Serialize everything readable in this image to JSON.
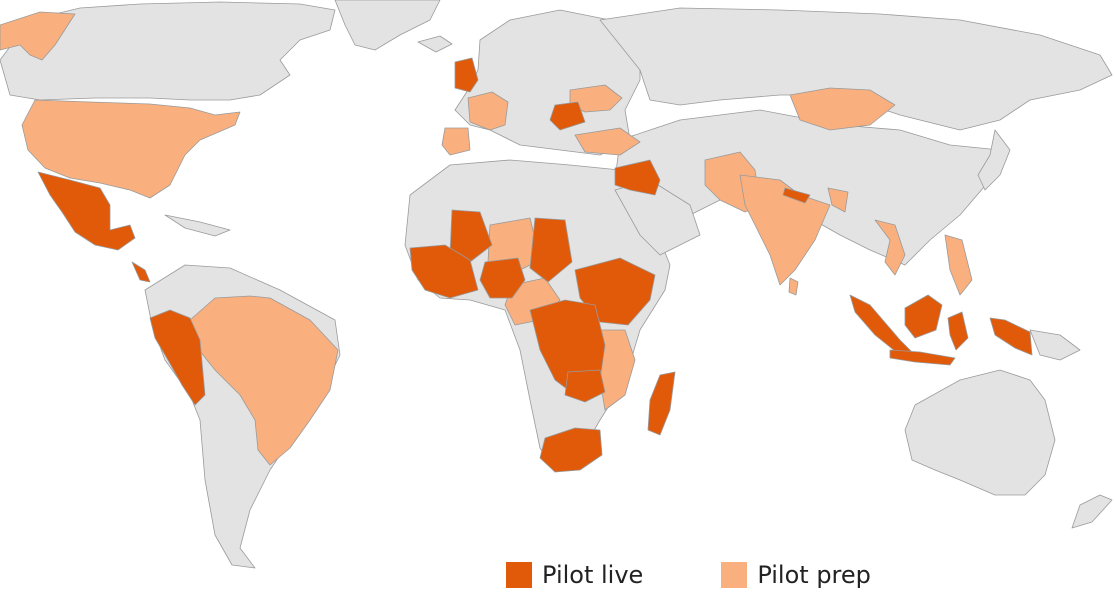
{
  "colors": {
    "background": "#ffffff",
    "land": "#e3e3e3",
    "border": "#9a9a9a",
    "pilot_live": "#e05a0a",
    "pilot_prep": "#f9b07e"
  },
  "legend": {
    "placement": "bottom-center",
    "items": [
      {
        "key": "pilot_live",
        "label": "Pilot live",
        "color": "#e05a0a"
      },
      {
        "key": "pilot_prep",
        "label": "Pilot prep",
        "color": "#f9b07e"
      }
    ]
  }
}
